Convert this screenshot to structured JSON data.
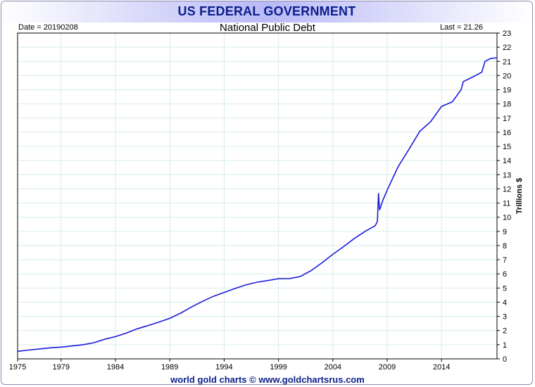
{
  "banner": {
    "title": "US FEDERAL GOVERNMENT"
  },
  "header": {
    "date_label": "Date = 20190208",
    "last_label": "Last = 21.26",
    "subtitle": "National Public Debt"
  },
  "footer": {
    "credit": "world gold charts © www.goldchartsrus.com"
  },
  "colors": {
    "line": "#1a1adc",
    "title": "#0b1f8c",
    "grid": "#d7ecec",
    "border": "#000000"
  },
  "chart_data": {
    "type": "line",
    "title": "National Public Debt",
    "xlabel": "",
    "ylabel": "Trillions $",
    "xlim": [
      1975,
      2019.1
    ],
    "ylim": [
      0,
      23
    ],
    "x_ticks": [
      1975,
      1979,
      1984,
      1989,
      1994,
      1999,
      2004,
      2009,
      2014
    ],
    "y_ticks": [
      0,
      1,
      2,
      3,
      4,
      5,
      6,
      7,
      8,
      9,
      10,
      11,
      12,
      13,
      14,
      15,
      16,
      17,
      18,
      19,
      20,
      21,
      22,
      23
    ],
    "grid": true,
    "series": [
      {
        "values": [
          [
            1975,
            0.53
          ],
          [
            1976,
            0.62
          ],
          [
            1977,
            0.7
          ],
          [
            1978,
            0.78
          ],
          [
            1979,
            0.83
          ],
          [
            1980,
            0.91
          ],
          [
            1981,
            1.0
          ],
          [
            1982,
            1.14
          ],
          [
            1983,
            1.38
          ],
          [
            1984,
            1.57
          ],
          [
            1985,
            1.82
          ],
          [
            1986,
            2.12
          ],
          [
            1987,
            2.35
          ],
          [
            1988,
            2.6
          ],
          [
            1989,
            2.86
          ],
          [
            1990,
            3.23
          ],
          [
            1991,
            3.66
          ],
          [
            1992,
            4.06
          ],
          [
            1993,
            4.41
          ],
          [
            1994,
            4.69
          ],
          [
            1995,
            4.97
          ],
          [
            1996,
            5.22
          ],
          [
            1997,
            5.41
          ],
          [
            1998,
            5.53
          ],
          [
            1999,
            5.66
          ],
          [
            2000,
            5.67
          ],
          [
            2001,
            5.81
          ],
          [
            2002,
            6.23
          ],
          [
            2003,
            6.78
          ],
          [
            2004,
            7.38
          ],
          [
            2005,
            7.93
          ],
          [
            2006,
            8.51
          ],
          [
            2007,
            9.01
          ],
          [
            2007.9,
            9.4
          ],
          [
            2008.1,
            9.7
          ],
          [
            2008.2,
            11.7
          ],
          [
            2008.3,
            10.5
          ],
          [
            2008.6,
            11.2
          ],
          [
            2009,
            11.91
          ],
          [
            2010,
            13.56
          ],
          [
            2011,
            14.79
          ],
          [
            2012,
            16.07
          ],
          [
            2013,
            16.75
          ],
          [
            2014,
            17.82
          ],
          [
            2015,
            18.15
          ],
          [
            2015.8,
            19.0
          ],
          [
            2016,
            19.57
          ],
          [
            2017,
            19.95
          ],
          [
            2017.7,
            20.24
          ],
          [
            2018,
            21.0
          ],
          [
            2018.5,
            21.2
          ],
          [
            2019.1,
            21.26
          ]
        ]
      }
    ]
  }
}
